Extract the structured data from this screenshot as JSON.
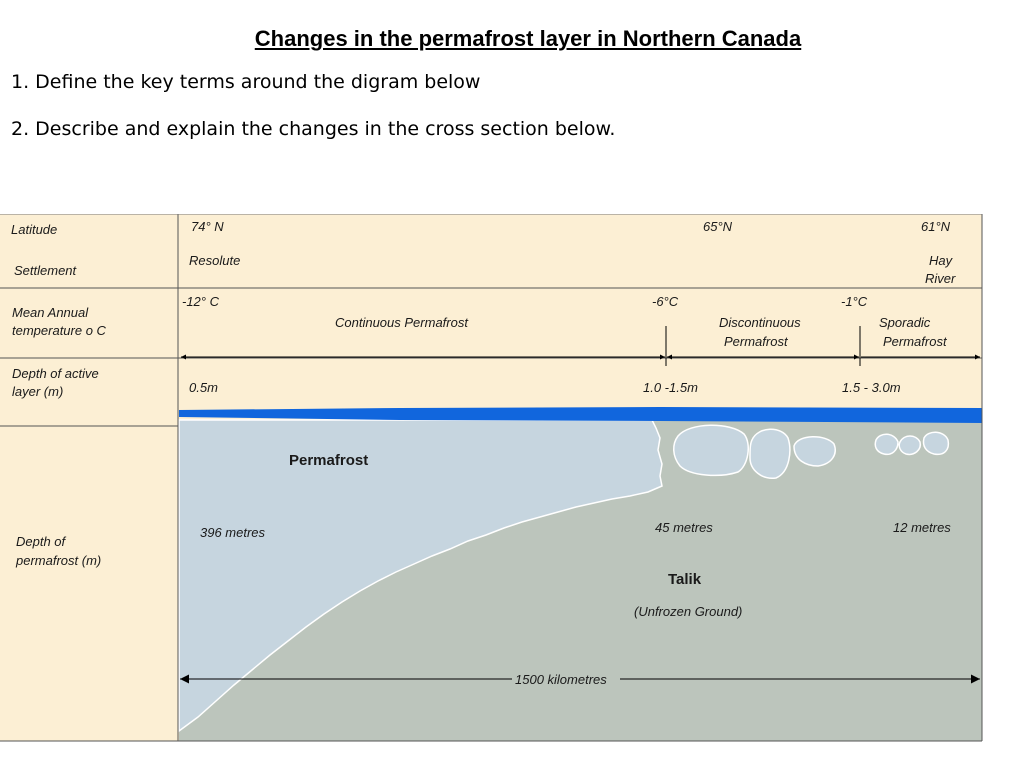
{
  "header": {
    "title": "Changes in the permafrost layer in Northern Canada",
    "question1": "1. Define the key terms around the digram below",
    "question2": "2. Describe and explain the changes in the cross section below."
  },
  "diagram": {
    "row_labels": {
      "latitude": "Latitude",
      "settlement": "Settlement",
      "temp_line1": "Mean Annual",
      "temp_line2": "temperature o C",
      "active_line1": "Depth of active",
      "active_line2": "layer (m)",
      "depth_line1": "Depth of",
      "depth_line2": "permafrost (m)"
    },
    "latitudes": [
      "74°  N",
      "65°N",
      "61°N"
    ],
    "settlements": {
      "left": "Resolute",
      "right_line1": "Hay",
      "right_line2": "River"
    },
    "temperatures": [
      "-12° C",
      "-6°C",
      "-1°C"
    ],
    "zones": {
      "continuous": "Continuous  Permafrost",
      "discontinuous_line1": "Discontinuous",
      "discontinuous_line2": "Permafrost",
      "sporadic_line1": "Sporadic",
      "sporadic_line2": "Permafrost"
    },
    "active_layer_depths": [
      "0.5m",
      "1.0 -1.5m",
      "1.5 - 3.0m"
    ],
    "permafrost_label": "Permafrost",
    "permafrost_depths": [
      "396 metres",
      "45 metres",
      "12 metres"
    ],
    "talik_label": "Talik",
    "talik_sub": "(Unfrozen Ground)",
    "distance": "1500 kilometres",
    "colors": {
      "table_bg": "#fcefd4",
      "permafrost": "#c6d5df",
      "talik": "#bcc5bc",
      "active_layer": "#1166dd"
    }
  }
}
